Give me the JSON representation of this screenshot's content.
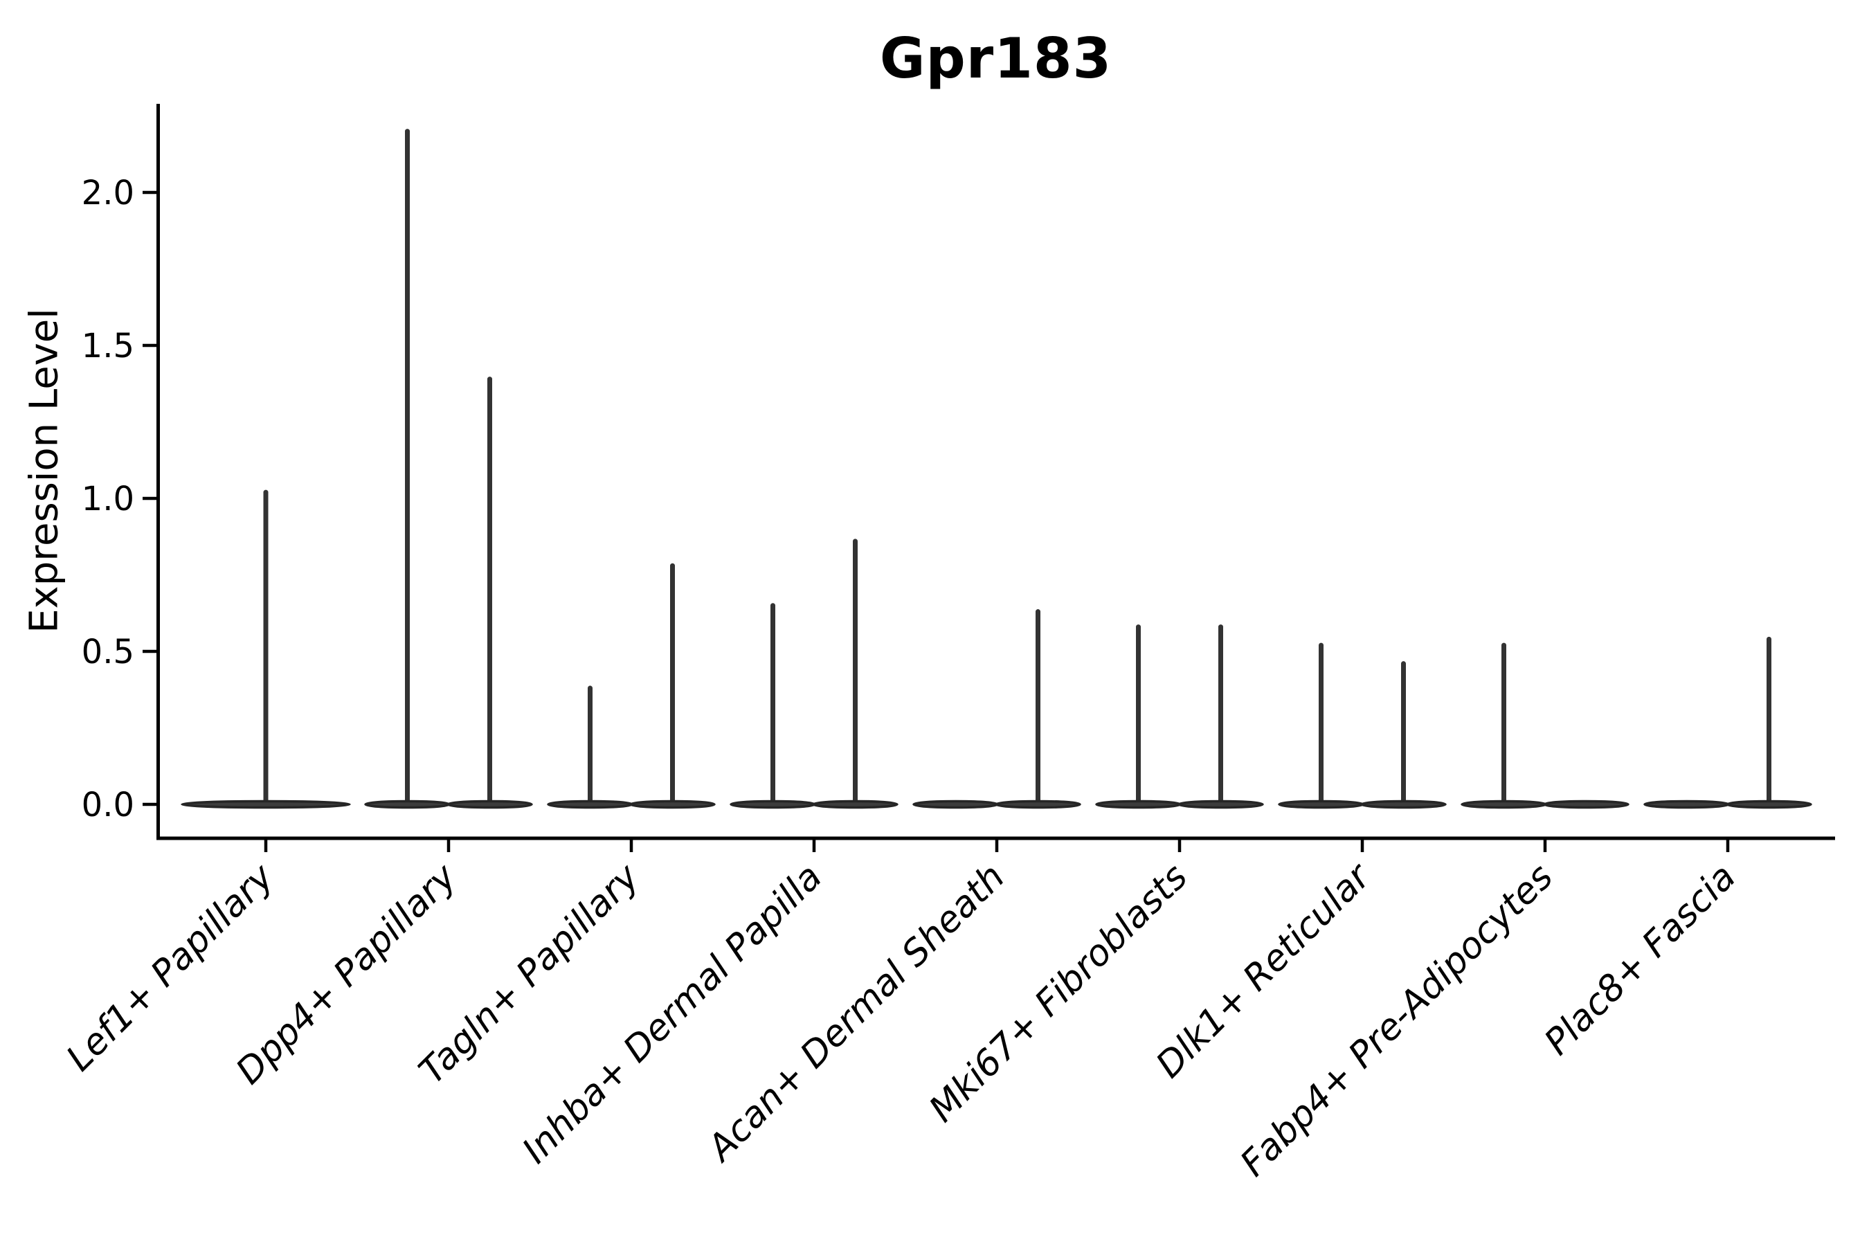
{
  "chart_data": {
    "type": "violin",
    "title": "Gpr183",
    "ylabel": "Expression Level",
    "xlabel": "",
    "ylim": [
      0,
      2.29
    ],
    "grid": false,
    "legend_position": "none",
    "y_ticks": [
      {
        "label": "0.0",
        "value": 0.0
      },
      {
        "label": "0.5",
        "value": 0.5
      },
      {
        "label": "1.0",
        "value": 1.0
      },
      {
        "label": "1.5",
        "value": 1.5
      },
      {
        "label": "2.0",
        "value": 2.0
      }
    ],
    "baseline_value": 0.0,
    "categories": [
      {
        "label": "Lef1+ Papillary",
        "violins": [
          {
            "pos": "center",
            "max": 1.02
          }
        ]
      },
      {
        "label": "Dpp4+ Papillary",
        "violins": [
          {
            "pos": "left",
            "max": 2.2
          },
          {
            "pos": "right",
            "max": 1.39
          }
        ]
      },
      {
        "label": "Tagln+ Papillary",
        "violins": [
          {
            "pos": "left",
            "max": 0.38
          },
          {
            "pos": "right",
            "max": 0.78
          }
        ]
      },
      {
        "label": "Inhba+ Dermal Papilla",
        "violins": [
          {
            "pos": "left",
            "max": 0.65
          },
          {
            "pos": "right",
            "max": 0.86
          }
        ]
      },
      {
        "label": "Acan+ Dermal Sheath",
        "violins": [
          {
            "pos": "left",
            "max": 0.0
          },
          {
            "pos": "right",
            "max": 0.63
          }
        ]
      },
      {
        "label": "Mki67+ Fibroblasts",
        "violins": [
          {
            "pos": "left",
            "max": 0.58
          },
          {
            "pos": "right",
            "max": 0.58
          }
        ]
      },
      {
        "label": "Dlk1+ Reticular",
        "violins": [
          {
            "pos": "left",
            "max": 0.52
          },
          {
            "pos": "right",
            "max": 0.46
          }
        ]
      },
      {
        "label": "Fabp4+ Pre-Adipocytes",
        "violins": [
          {
            "pos": "left",
            "max": 0.52
          },
          {
            "pos": "right",
            "max": 0.0
          }
        ]
      },
      {
        "label": "Plac8+ Fascia",
        "violins": [
          {
            "pos": "left",
            "max": 0.0
          },
          {
            "pos": "right",
            "max": 0.54
          }
        ]
      }
    ],
    "colors": {
      "violin_fill": "#3c3c3c",
      "violin_stroke": "#262626",
      "spike": "#333333",
      "axis": "#000000",
      "text": "#000000",
      "background": "#ffffff"
    }
  }
}
